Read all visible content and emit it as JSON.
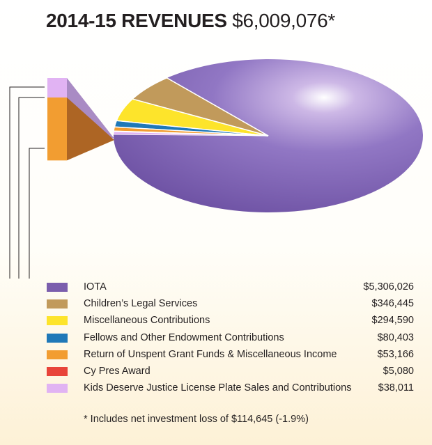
{
  "title": {
    "main": "2014-15 REVENUES",
    "amount": "$6,009,076*"
  },
  "chart_data": {
    "type": "pie",
    "title": "2014-15 REVENUES $6,009,076*",
    "total": 6009076,
    "legend_position": "bottom",
    "series": [
      {
        "name": "IOTA",
        "value": 5306026,
        "value_label": "$5,306,026",
        "color": "#7b5ead",
        "dark": "#4e3a82"
      },
      {
        "name": "Children’s Legal Services",
        "value": 346445,
        "value_label": "$346,445",
        "color": "#c19a5b",
        "dark": "#8c6a35"
      },
      {
        "name": "Miscellaneous Contributions",
        "value": 294590,
        "value_label": "$294,590",
        "color": "#fde42b",
        "dark": "#c9ad12"
      },
      {
        "name": "Fellows and Other Endowment Contributions",
        "value": 80403,
        "value_label": "$80,403",
        "color": "#1f78b8",
        "dark": "#10507e"
      },
      {
        "name": "Return of Unspent Grant Funds & Miscellaneous Income",
        "value": 53166,
        "value_label": "$53,166",
        "color": "#f29d31",
        "dark": "#b5691f"
      },
      {
        "name": "Cy Pres Award",
        "value": 5080,
        "value_label": "$5,080",
        "color": "#e8443a",
        "dark": "#a32b24"
      },
      {
        "name": "Kids Deserve Justice License Plate Sales and Contributions",
        "value": 38011,
        "value_label": "$38,011",
        "color": "#e1b3f3",
        "dark": "#a97bbb"
      }
    ],
    "breakout_series": [
      "Return of Unspent Grant Funds & Miscellaneous Income",
      "Kids Deserve Justice License Plate Sales and Contributions"
    ],
    "footnote": "* Includes net investment loss of $114,645 (-1.9%)"
  }
}
